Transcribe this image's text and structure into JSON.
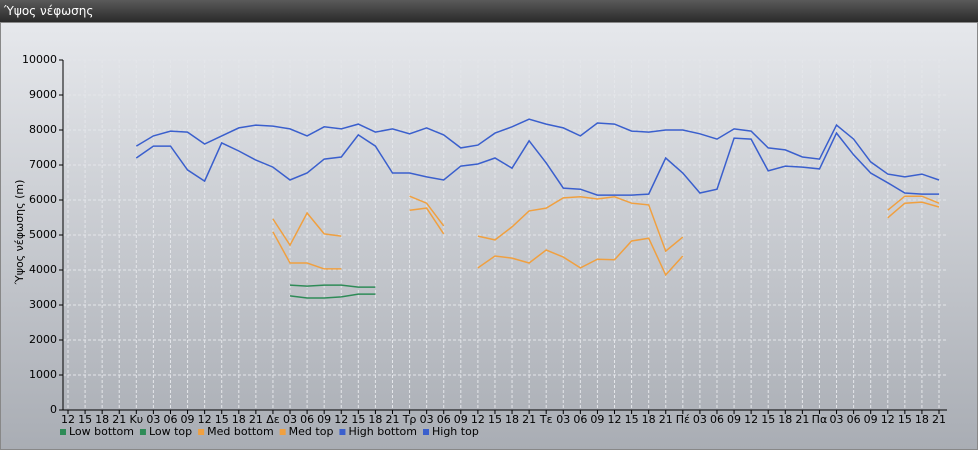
{
  "window_title": "Ύψος νέφωσης",
  "chart_data": {
    "type": "line",
    "y_label": "Ύψος νέφωσης (m)",
    "categories": [
      "12",
      "15",
      "18",
      "21",
      "Κυ",
      "03",
      "06",
      "09",
      "12",
      "15",
      "18",
      "21",
      "Δε",
      "03",
      "06",
      "09",
      "12",
      "15",
      "18",
      "21",
      "Τρ",
      "03",
      "06",
      "09",
      "12",
      "15",
      "18",
      "21",
      "Τε",
      "03",
      "06",
      "09",
      "12",
      "15",
      "18",
      "21",
      "Πέ",
      "03",
      "06",
      "09",
      "12",
      "15",
      "18",
      "21",
      "Πα",
      "03",
      "06",
      "09",
      "12",
      "15",
      "18",
      "21"
    ],
    "ylim": [
      0,
      10000
    ],
    "yticks": [
      0,
      1000,
      2000,
      3000,
      4000,
      5000,
      6000,
      7000,
      8000,
      9000,
      10000
    ],
    "grid": true,
    "series": [
      {
        "name": "Low bottom",
        "color": "#2e8b57",
        "values": [
          null,
          null,
          null,
          null,
          null,
          null,
          null,
          null,
          null,
          null,
          null,
          null,
          null,
          3260,
          3200,
          3200,
          3230,
          3310,
          3310,
          null,
          null,
          null,
          null,
          null,
          null,
          null,
          null,
          null,
          null,
          null,
          null,
          null,
          null,
          null,
          null,
          null,
          null,
          null,
          null,
          null,
          null,
          null,
          null,
          null,
          null,
          null,
          null,
          null,
          null,
          null,
          null,
          null
        ]
      },
      {
        "name": "Low top",
        "color": "#2e8b57",
        "values": [
          null,
          null,
          null,
          null,
          null,
          null,
          null,
          null,
          null,
          null,
          null,
          null,
          null,
          3570,
          3540,
          3570,
          3570,
          3510,
          3510,
          null,
          null,
          null,
          null,
          null,
          null,
          null,
          null,
          null,
          null,
          null,
          null,
          null,
          null,
          null,
          null,
          null,
          null,
          null,
          null,
          null,
          null,
          null,
          null,
          null,
          null,
          null,
          null,
          null,
          null,
          null,
          null,
          null
        ]
      },
      {
        "name": "Med bottom",
        "color": "#f0a040",
        "values": [
          null,
          null,
          null,
          null,
          null,
          null,
          null,
          null,
          null,
          null,
          null,
          null,
          5090,
          4200,
          4200,
          4030,
          4030,
          null,
          null,
          null,
          5710,
          5770,
          5030,
          null,
          4060,
          4400,
          4340,
          4200,
          4570,
          4370,
          4060,
          4310,
          4290,
          4830,
          4910,
          3860,
          4400,
          null,
          null,
          null,
          null,
          null,
          null,
          null,
          null,
          null,
          null,
          null,
          5490,
          5910,
          5940,
          5800
        ]
      },
      {
        "name": "Med top",
        "color": "#f0a040",
        "values": [
          null,
          null,
          null,
          null,
          null,
          null,
          null,
          null,
          null,
          null,
          null,
          null,
          5460,
          4710,
          5630,
          5030,
          4970,
          null,
          null,
          null,
          6110,
          5910,
          5260,
          null,
          4970,
          4860,
          5230,
          5690,
          5770,
          6060,
          6090,
          6030,
          6090,
          5910,
          5860,
          4540,
          4940,
          null,
          null,
          null,
          null,
          null,
          null,
          null,
          null,
          null,
          null,
          null,
          5710,
          6110,
          6110,
          5910
        ]
      },
      {
        "name": "High bottom",
        "color": "#3a5fcd",
        "values": [
          null,
          null,
          null,
          null,
          7200,
          7540,
          7540,
          6860,
          6540,
          7630,
          7400,
          7140,
          6940,
          6570,
          6770,
          7170,
          7230,
          7860,
          7540,
          6770,
          6770,
          6660,
          6570,
          6970,
          7030,
          7200,
          6910,
          7690,
          7060,
          6340,
          6310,
          6140,
          6140,
          6140,
          6170,
          7200,
          6770,
          6200,
          6310,
          7770,
          7740,
          6830,
          6970,
          6940,
          6890,
          7910,
          7290,
          6770,
          6490,
          6200,
          6170,
          6170
        ]
      },
      {
        "name": "High top",
        "color": "#3a5fcd",
        "values": [
          null,
          null,
          null,
          null,
          7540,
          7830,
          7970,
          7940,
          7600,
          7830,
          8060,
          8140,
          8110,
          8030,
          7830,
          8090,
          8030,
          8170,
          7940,
          8030,
          7890,
          8060,
          7860,
          7490,
          7570,
          7910,
          8090,
          8310,
          8170,
          8060,
          7830,
          8200,
          8170,
          7970,
          7940,
          8000,
          8000,
          7890,
          7740,
          8030,
          7970,
          7490,
          7430,
          7230,
          7170,
          8140,
          7740,
          7090,
          6740,
          6660,
          6740,
          6570
        ]
      }
    ]
  }
}
